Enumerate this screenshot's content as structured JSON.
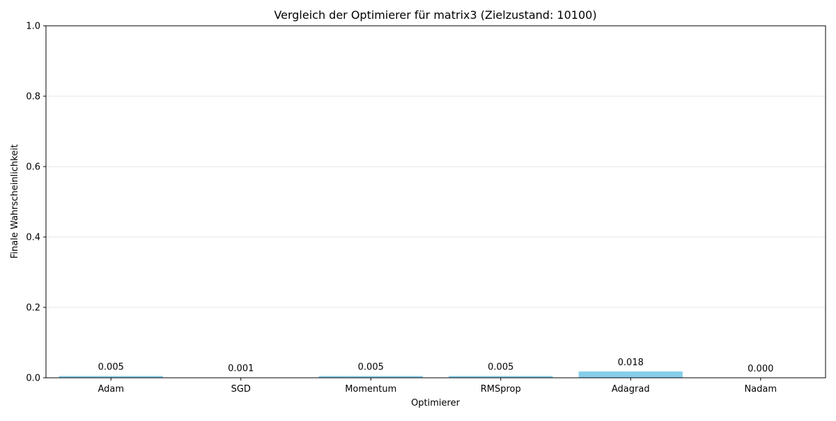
{
  "chart_data": {
    "type": "bar",
    "title": "Vergleich der Optimierer für matrix3 (Zielzustand: 10100)",
    "xlabel": "Optimierer",
    "ylabel": "Finale Wahrscheinlichkeit",
    "categories": [
      "Adam",
      "SGD",
      "Momentum",
      "RMSprop",
      "Adagrad",
      "Nadam"
    ],
    "values": [
      0.005,
      0.001,
      0.005,
      0.005,
      0.018,
      0.0
    ],
    "value_labels": [
      "0.005",
      "0.001",
      "0.005",
      "0.005",
      "0.018",
      "0.000"
    ],
    "ylim": [
      0,
      1
    ],
    "yticks": [
      0.0,
      0.2,
      0.4,
      0.6,
      0.8,
      1.0
    ],
    "ytick_labels": [
      "0.0",
      "0.2",
      "0.4",
      "0.6",
      "0.8",
      "1.0"
    ],
    "grid": "y-axis",
    "colors": {
      "bar": "#87ceeb",
      "grid": "#e6e6e6",
      "axis": "#000000"
    }
  }
}
